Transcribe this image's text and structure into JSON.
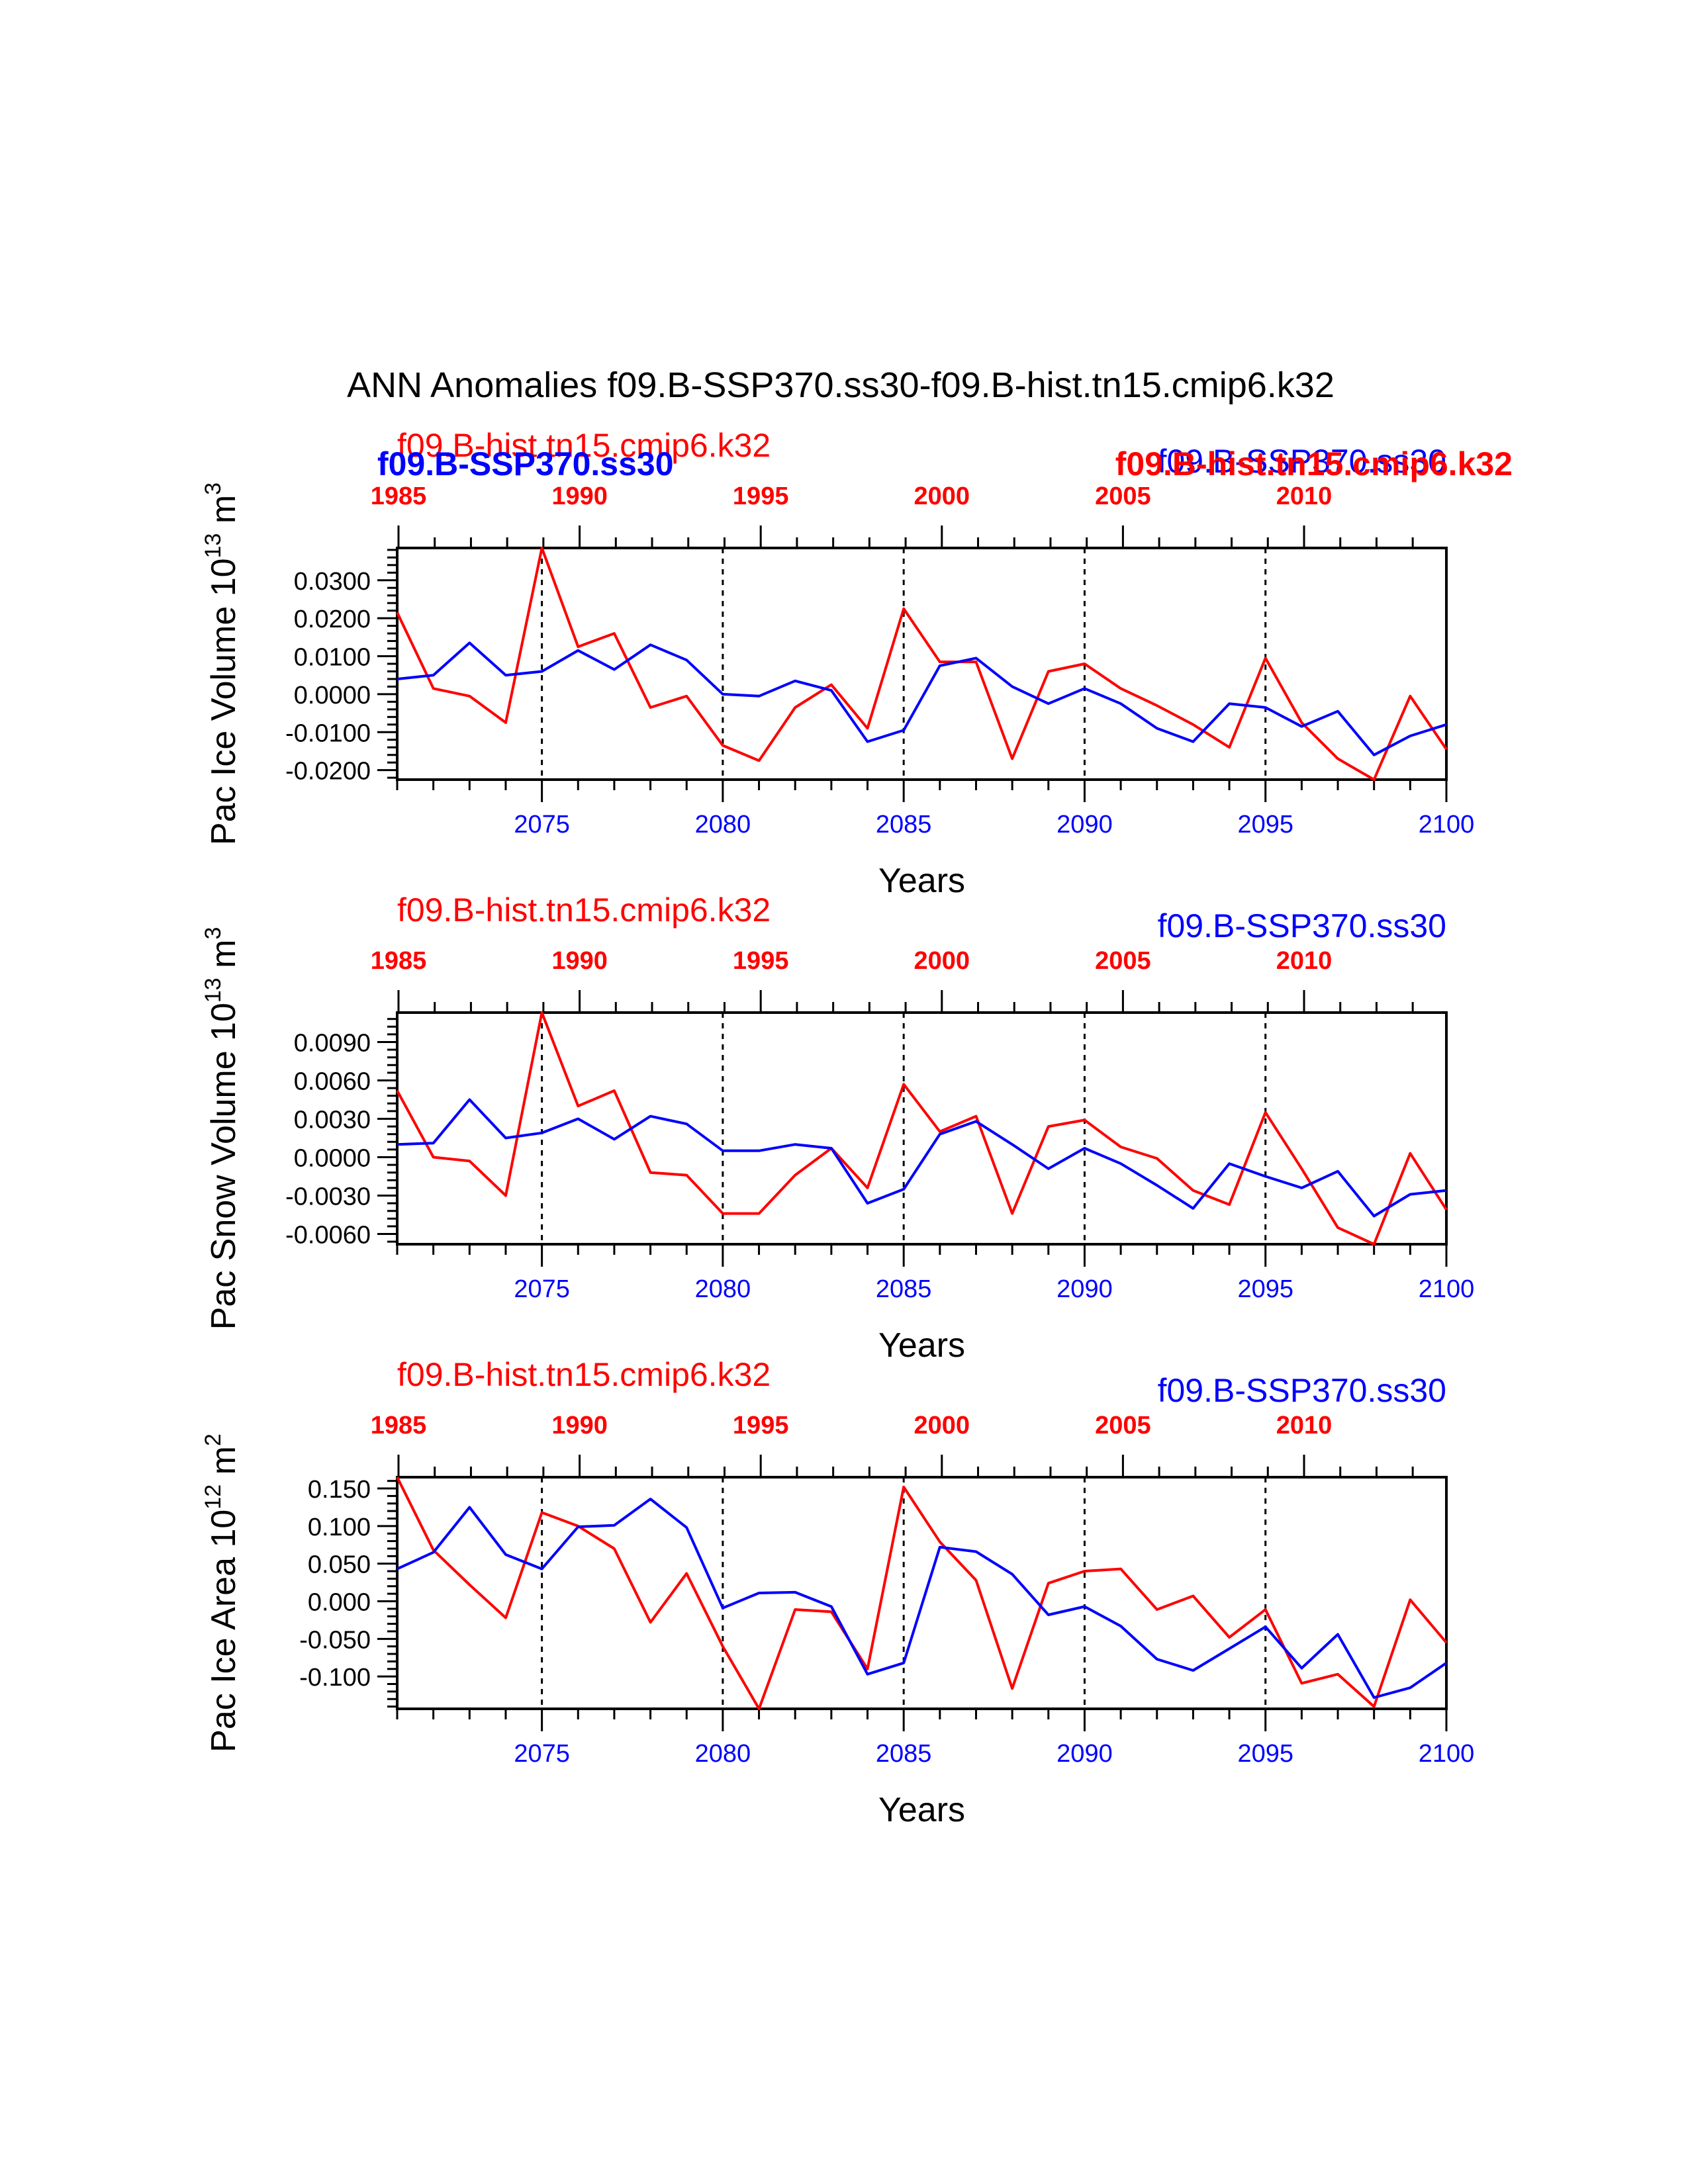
{
  "page": {
    "title": "ANN Anomalies f09.B-SSP370.ss30-f09.B-hist.tn15.cmip6.k32"
  },
  "colors": {
    "blue": "#0000ff",
    "red": "#ff0000",
    "axis": "#000000"
  },
  "overlap_labels": {
    "blue_bold": "f09.B-SSP370.ss30",
    "red_bold": "f09.B-hist.tn15.cmip6.k32"
  },
  "chart_data": [
    {
      "type": "line",
      "xlabel": "Years",
      "ylabel": "Pac Ice Volume 10",
      "ylabel_exp": "13",
      "ylabel_unit": " m",
      "ylabel_unit_exp": "3",
      "case_red": "f09.B-hist.tn15.cmip6.k32",
      "case_blue": "f09.B-SSP370.ss30",
      "xlim": [
        2071,
        2100
      ],
      "ylim": [
        -0.0225,
        0.0385
      ],
      "x_ticks": [
        "2075",
        "2080",
        "2085",
        "2090",
        "2095",
        "2100"
      ],
      "top_ticks": [
        "1985",
        "1990",
        "1995",
        "2000",
        "2005",
        "2010"
      ],
      "y_ticks": [
        "0.0300",
        "0.0200",
        "0.0100",
        "0.0000",
        "-0.0100",
        "-0.0200"
      ],
      "y_tick_values": [
        0.03,
        0.02,
        0.01,
        0.0,
        -0.01,
        -0.02
      ],
      "x": [
        2071,
        2072,
        2073,
        2074,
        2075,
        2076,
        2077,
        2078,
        2079,
        2080,
        2081,
        2082,
        2083,
        2084,
        2085,
        2086,
        2087,
        2088,
        2089,
        2090,
        2091,
        2092,
        2093,
        2094,
        2095,
        2096,
        2097,
        2098,
        2099,
        2100
      ],
      "series": [
        {
          "color": "red",
          "values": [
            0.0215,
            0.0015,
            -0.0005,
            -0.0075,
            0.0385,
            0.0125,
            0.016,
            -0.0035,
            -0.0005,
            -0.0135,
            -0.0175,
            -0.0035,
            0.0025,
            -0.009,
            0.0225,
            0.0085,
            0.0085,
            -0.017,
            0.006,
            0.008,
            0.0015,
            -0.003,
            -0.008,
            -0.014,
            0.0095,
            -0.0075,
            -0.017,
            -0.0225,
            -0.0005,
            -0.0145
          ]
        },
        {
          "color": "blue",
          "values": [
            0.004,
            0.005,
            0.0135,
            0.005,
            0.006,
            0.0115,
            0.0065,
            0.013,
            0.009,
            0.0,
            -0.0005,
            0.0035,
            0.001,
            -0.0125,
            -0.0095,
            0.0075,
            0.0095,
            0.002,
            -0.0025,
            0.0015,
            -0.0025,
            -0.009,
            -0.0125,
            -0.0025,
            -0.0035,
            -0.0085,
            -0.0045,
            -0.016,
            -0.011,
            -0.008
          ]
        }
      ]
    },
    {
      "type": "line",
      "xlabel": "Years",
      "ylabel": "Pac Snow Volume 10",
      "ylabel_exp": "13",
      "ylabel_unit": " m",
      "ylabel_unit_exp": "3",
      "case_red": "f09.B-hist.tn15.cmip6.k32",
      "case_blue": "f09.B-SSP370.ss30",
      "xlim": [
        2071,
        2100
      ],
      "ylim": [
        -0.0068,
        0.0113
      ],
      "x_ticks": [
        "2075",
        "2080",
        "2085",
        "2090",
        "2095",
        "2100"
      ],
      "top_ticks": [
        "1985",
        "1990",
        "1995",
        "2000",
        "2005",
        "2010"
      ],
      "y_ticks": [
        "0.0090",
        "0.0060",
        "0.0030",
        "0.0000",
        "-0.0030",
        "-0.0060"
      ],
      "y_tick_values": [
        0.009,
        0.006,
        0.003,
        0.0,
        -0.003,
        -0.006
      ],
      "x": [
        2071,
        2072,
        2073,
        2074,
        2075,
        2076,
        2077,
        2078,
        2079,
        2080,
        2081,
        2082,
        2083,
        2084,
        2085,
        2086,
        2087,
        2088,
        2089,
        2090,
        2091,
        2092,
        2093,
        2094,
        2095,
        2096,
        2097,
        2098,
        2099,
        2100
      ],
      "series": [
        {
          "color": "red",
          "values": [
            0.0052,
            0.0,
            -0.0003,
            -0.003,
            0.0113,
            0.004,
            0.0052,
            -0.0012,
            -0.0014,
            -0.0044,
            -0.0044,
            -0.0014,
            0.0007,
            -0.0024,
            0.0057,
            0.002,
            0.0032,
            -0.0044,
            0.0024,
            0.0029,
            0.0008,
            -0.0001,
            -0.0026,
            -0.0037,
            0.0035,
            -0.0009,
            -0.0055,
            -0.0068,
            0.0003,
            -0.0041
          ]
        },
        {
          "color": "blue",
          "values": [
            0.001,
            0.0011,
            0.0045,
            0.0015,
            0.0019,
            0.003,
            0.0014,
            0.0032,
            0.0026,
            0.0005,
            0.0005,
            0.001,
            0.0007,
            -0.0036,
            -0.0025,
            0.0018,
            0.0028,
            0.001,
            -0.0009,
            0.0007,
            -0.0005,
            -0.0022,
            -0.004,
            -0.0005,
            -0.0015,
            -0.0024,
            -0.0011,
            -0.0046,
            -0.0029,
            -0.0026
          ]
        }
      ]
    },
    {
      "type": "line",
      "xlabel": "Years",
      "ylabel": "Pac Ice Area 10",
      "ylabel_exp": "12",
      "ylabel_unit": " m",
      "ylabel_unit_exp": "2",
      "case_red": "f09.B-hist.tn15.cmip6.k32",
      "case_blue": "f09.B-SSP370.ss30",
      "xlim": [
        2071,
        2100
      ],
      "ylim": [
        -0.143,
        0.165
      ],
      "x_ticks": [
        "2075",
        "2080",
        "2085",
        "2090",
        "2095",
        "2100"
      ],
      "top_ticks": [
        "1985",
        "1990",
        "1995",
        "2000",
        "2005",
        "2010"
      ],
      "y_ticks": [
        "0.150",
        "0.100",
        "0.050",
        "0.000",
        "-0.050",
        "-0.100"
      ],
      "y_tick_values": [
        0.15,
        0.1,
        0.05,
        0.0,
        -0.05,
        -0.1
      ],
      "x": [
        2071,
        2072,
        2073,
        2074,
        2075,
        2076,
        2077,
        2078,
        2079,
        2080,
        2081,
        2082,
        2083,
        2084,
        2085,
        2086,
        2087,
        2088,
        2089,
        2090,
        2091,
        2092,
        2093,
        2094,
        2095,
        2096,
        2097,
        2098,
        2099,
        2100
      ],
      "series": [
        {
          "color": "red",
          "values": [
            0.165,
            0.068,
            0.022,
            -0.022,
            0.118,
            0.1,
            0.07,
            -0.028,
            0.037,
            -0.06,
            -0.143,
            -0.011,
            -0.014,
            -0.09,
            0.152,
            0.079,
            0.028,
            -0.116,
            0.024,
            0.04,
            0.043,
            -0.011,
            0.007,
            -0.048,
            -0.011,
            -0.109,
            -0.097,
            -0.14,
            0.002,
            -0.055
          ]
        },
        {
          "color": "blue",
          "values": [
            0.043,
            0.065,
            0.125,
            0.062,
            0.043,
            0.099,
            0.101,
            0.136,
            0.098,
            -0.009,
            0.011,
            0.012,
            -0.007,
            -0.097,
            -0.082,
            0.072,
            0.066,
            0.036,
            -0.018,
            -0.007,
            -0.033,
            -0.077,
            -0.092,
            -0.063,
            -0.034,
            -0.089,
            -0.044,
            -0.128,
            -0.115,
            -0.082
          ]
        }
      ]
    }
  ]
}
